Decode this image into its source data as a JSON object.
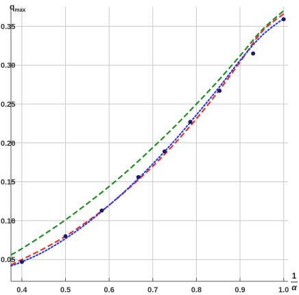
{
  "chart_data": {
    "type": "line",
    "title": "",
    "ylabel": "q",
    "ylabel_subscript": "max",
    "xlabel_numerator": "1",
    "xlabel_denominator": "α",
    "xlim": [
      0.375,
      1.01
    ],
    "ylim": [
      0.022,
      0.375
    ],
    "grid": true,
    "x_ticks": [
      0.4,
      0.5,
      0.6,
      0.7,
      0.8,
      0.9,
      1.0
    ],
    "x_tick_labels": [
      "0.4",
      "0.5",
      "0.6",
      "0.7",
      "0.8",
      "0.9",
      "1.0"
    ],
    "y_ticks": [
      0.05,
      0.1,
      0.15,
      0.2,
      0.25,
      0.3,
      0.35
    ],
    "y_tick_labels": [
      "0.05",
      "0.10",
      "0.15",
      "0.20",
      "0.25",
      "0.30",
      "0.35"
    ],
    "series": [
      {
        "style": "dashed",
        "color": "#228B22",
        "x": [
          0.375,
          0.4,
          0.45,
          0.5,
          0.55,
          0.6,
          0.65,
          0.7,
          0.75,
          0.8,
          0.85,
          0.9,
          0.95,
          1.0
        ],
        "y": [
          0.056,
          0.064,
          0.082,
          0.101,
          0.122,
          0.144,
          0.168,
          0.194,
          0.221,
          0.25,
          0.28,
          0.312,
          0.345,
          0.37
        ]
      },
      {
        "style": "dashed",
        "color": "#e6322b",
        "x": [
          0.375,
          0.4,
          0.45,
          0.5,
          0.55,
          0.6,
          0.65,
          0.7,
          0.75,
          0.8,
          0.85,
          0.9,
          0.95,
          1.0
        ],
        "y": [
          0.043,
          0.05,
          0.064,
          0.08,
          0.099,
          0.12,
          0.144,
          0.17,
          0.199,
          0.231,
          0.266,
          0.304,
          0.343,
          0.366
        ]
      },
      {
        "style": "dotted",
        "color": "#2a3de8",
        "x": [
          0.375,
          0.4,
          0.45,
          0.5,
          0.55,
          0.6,
          0.65,
          0.7,
          0.75,
          0.8,
          0.85,
          0.9,
          0.95,
          1.0
        ],
        "y": [
          0.042,
          0.047,
          0.06,
          0.077,
          0.097,
          0.12,
          0.145,
          0.173,
          0.203,
          0.236,
          0.27,
          0.306,
          0.338,
          0.36
        ]
      },
      {
        "style": "markers",
        "color": "#1a1a6e",
        "x": [
          0.4,
          0.5,
          0.583,
          0.667,
          0.727,
          0.786,
          0.853,
          0.93,
          1.0
        ],
        "y": [
          0.047,
          0.08,
          0.113,
          0.156,
          0.189,
          0.227,
          0.267,
          0.315,
          0.359
        ]
      }
    ]
  }
}
